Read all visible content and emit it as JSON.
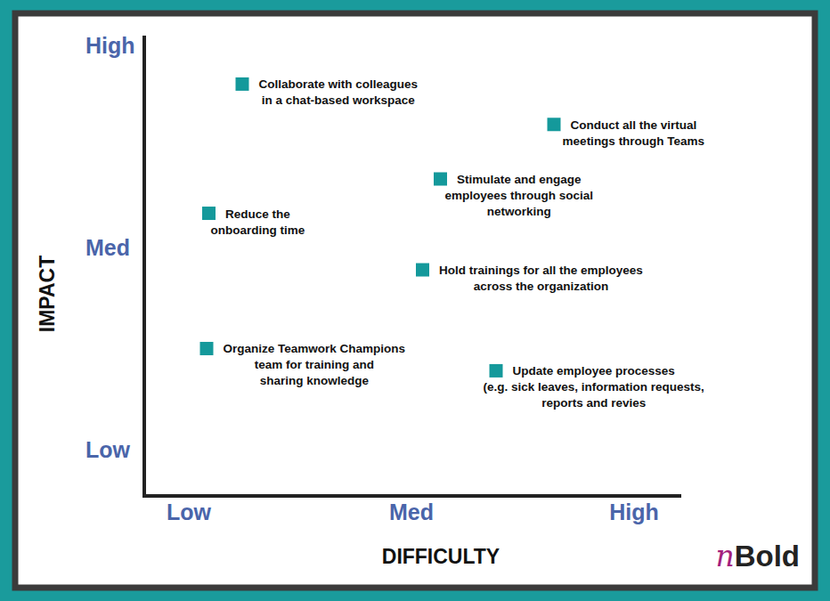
{
  "chart_data": {
    "type": "scatter",
    "x_label": "DIFFICULTY",
    "y_label": "IMPACT",
    "x": [
      0.24,
      1.64,
      1.13,
      0.09,
      1.05,
      0.08,
      1.38
    ],
    "values": [
      1.81,
      1.61,
      1.34,
      1.17,
      0.89,
      0.5,
      0.39
    ],
    "point_labels": [
      [
        "Collaborate with colleagues",
        "in a chat-based workspace"
      ],
      [
        "Conduct all the virtual",
        "meetings through Teams"
      ],
      [
        "Stimulate and engage",
        "employees through social",
        "networking"
      ],
      [
        "Reduce the",
        "onboarding time"
      ],
      [
        "Hold trainings for all the employees",
        "across the organization"
      ],
      [
        "Organize Teamwork Champions",
        "team for training and",
        "sharing knowledge"
      ],
      [
        "Update employee processes",
        "(e.g. sick leaves, information requests,",
        "reports and revies"
      ]
    ],
    "color": "#14999b",
    "marker": "square",
    "xlim": [
      -0.2,
      2.2
    ],
    "ylim": [
      -0.23,
      2.05
    ],
    "xticks": [
      {
        "value": 0,
        "label": "Low"
      },
      {
        "value": 1,
        "label": "Med"
      },
      {
        "value": 2,
        "label": "High"
      }
    ],
    "yticks": [
      {
        "value": 0,
        "label": "Low"
      },
      {
        "value": 1,
        "label": "Med"
      },
      {
        "value": 2,
        "label": "High"
      }
    ],
    "grid": false,
    "logo": "nBold"
  }
}
